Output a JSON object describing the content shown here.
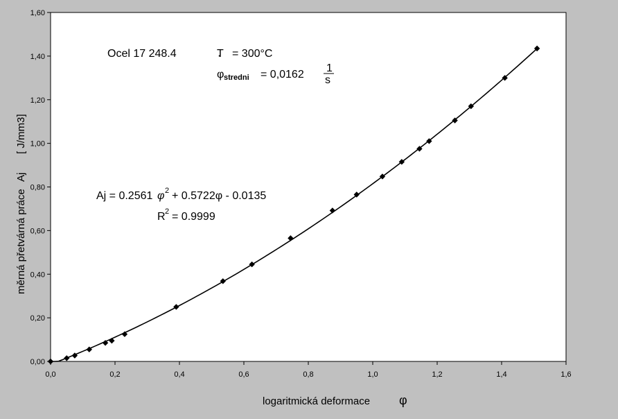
{
  "chart_data": {
    "type": "scatter",
    "title": "",
    "xlabel": "logaritmická deformace",
    "xlabel_symbol": "φ",
    "ylabel": "měrná přetvárná práce",
    "ylabel_symbol": "Aj",
    "ylabel_unit": "[ J/mm3]",
    "xlim": [
      0,
      1.6
    ],
    "ylim": [
      0,
      1.6
    ],
    "x_ticks": [
      "0,0",
      "0,2",
      "0,4",
      "0,6",
      "0,8",
      "1,0",
      "1,2",
      "1,4",
      "1,6"
    ],
    "y_ticks": [
      "0,00",
      "0,20",
      "0,40",
      "0,60",
      "0,80",
      "1,00",
      "1,20",
      "1,40",
      "1,60"
    ],
    "grid": false,
    "legend": "none",
    "marker": "diamond",
    "color": "#000000",
    "background": "#c0c0c0",
    "plot_background": "#ffffff",
    "series": [
      {
        "x": [
          0.0,
          0.05,
          0.075,
          0.12,
          0.17,
          0.19,
          0.23,
          0.39,
          0.535,
          0.625,
          0.745,
          0.875,
          0.95,
          1.03,
          1.09,
          1.145,
          1.175,
          1.255,
          1.305,
          1.41,
          1.51
        ],
        "y": [
          0.0,
          0.015,
          0.027,
          0.055,
          0.085,
          0.095,
          0.125,
          0.25,
          0.368,
          0.445,
          0.565,
          0.692,
          0.765,
          0.848,
          0.915,
          0.975,
          1.01,
          1.105,
          1.17,
          1.3,
          1.435
        ]
      }
    ],
    "trendline": {
      "a": 0.2561,
      "b": 0.5722,
      "c": -0.0135,
      "x_from": 0.0,
      "x_to": 1.51
    },
    "annotations": {
      "material": "Ocel 17 248.4",
      "temp_prefix": "T",
      "temp_value": "= 300°C",
      "rate_symbol": "φ",
      "rate_dot": "˙",
      "rate_sub": "stredni",
      "rate_value": "= 0,0162",
      "rate_num": "1",
      "rate_den": "s",
      "eq_a": "Aj = 0.2561",
      "eq_phi_a": "φ",
      "eq_pow_a": "2",
      "eq_b": "+ 0.5722φ - 0.0135",
      "r2_r": "R",
      "r2_sup": "2",
      "r2_value": "= 0.9999"
    }
  }
}
